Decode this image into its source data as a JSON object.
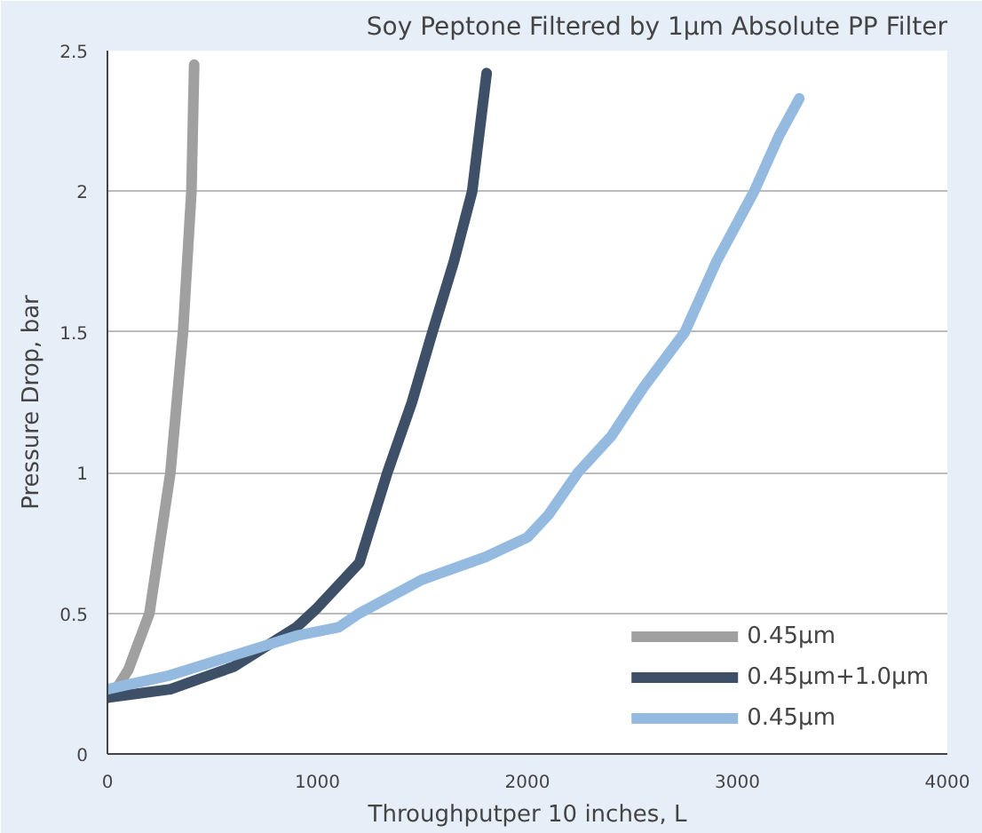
{
  "chart_data": {
    "type": "line",
    "title": "Soy Peptone Filtered by 1µm Absolute PP Filter",
    "xlabel": "Throughputper 10 inches, L",
    "ylabel": "Pressure Drop, bar",
    "xlim": [
      0,
      4000
    ],
    "xticks": [
      0,
      1000,
      2000,
      3000,
      4000
    ],
    "ylim": [
      0,
      2.5
    ],
    "yticks": [
      0,
      0.5,
      1,
      1.5,
      2,
      2.5
    ],
    "grid": "y",
    "legend": "bottom right",
    "line_style": "solid",
    "series": [
      {
        "name": "0.45µm",
        "color": "#a0a0a0",
        "x": [
          0,
          50,
          100,
          200,
          300,
          360,
          400,
          413
        ],
        "values": [
          0.2,
          0.24,
          0.3,
          0.5,
          1.0,
          1.5,
          2.0,
          2.45
        ]
      },
      {
        "name": "0.45µm+1.0µm",
        "color": "#3d5068",
        "x": [
          0,
          300,
          600,
          900,
          1000,
          1200,
          1333,
          1450,
          1548,
          1650,
          1737,
          1806
        ],
        "values": [
          0.2,
          0.23,
          0.31,
          0.45,
          0.52,
          0.68,
          1.0,
          1.25,
          1.5,
          1.75,
          2.0,
          2.42
        ]
      },
      {
        "name": "0.45µm",
        "color": "#94bbdf",
        "x": [
          0,
          300,
          600,
          900,
          1100,
          1200,
          1500,
          1800,
          2000,
          2100,
          2240,
          2400,
          2550,
          2750,
          2900,
          3080,
          3200,
          3295
        ],
        "values": [
          0.23,
          0.28,
          0.35,
          0.42,
          0.45,
          0.5,
          0.62,
          0.7,
          0.77,
          0.85,
          1.0,
          1.13,
          1.3,
          1.5,
          1.75,
          2.0,
          2.2,
          2.33
        ]
      }
    ]
  }
}
